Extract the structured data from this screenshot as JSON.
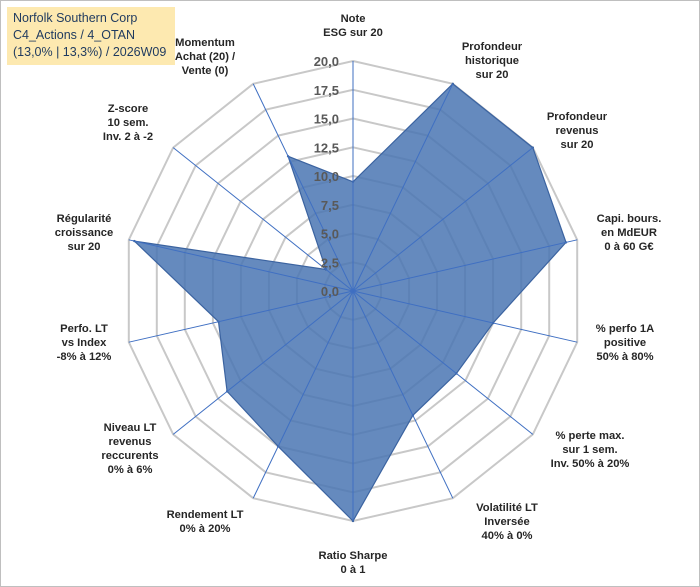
{
  "header": {
    "line1": "Norfolk Southern Corp",
    "line2": "C4_Actions / 4_OTAN",
    "line3": "(13,0% | 13,3%) / 2026W09"
  },
  "colors": {
    "fill": "#4a76b3",
    "stroke": "#3b63a0",
    "spoke": "#3f6fc2",
    "grid": "#c8c8c8",
    "title_bg": "#fde9b0"
  },
  "chart_data": {
    "type": "radar",
    "title": "Norfolk Southern Corp",
    "rlim": [
      0,
      20
    ],
    "tick_labels": [
      "0,0",
      "2,5",
      "5,0",
      "7,5",
      "10,0",
      "12,5",
      "15,0",
      "17,5",
      "20,0"
    ],
    "grid": true,
    "categories": [
      {
        "label": [
          "Note",
          "ESG sur 20"
        ],
        "value": 9.5
      },
      {
        "label": [
          "Profondeur",
          "historique",
          "sur 20"
        ],
        "value": 20.0
      },
      {
        "label": [
          "Profondeur",
          "revenus",
          "sur 20"
        ],
        "value": 20.0
      },
      {
        "label": [
          "Capi. bours.",
          "en MdEUR",
          "0 à 60 G€"
        ],
        "value": 19.0
      },
      {
        "label": [
          "% perfo 1A",
          "positive",
          "50% à 80%"
        ],
        "value": 12.5
      },
      {
        "label": [
          "% perte max.",
          "sur 1 sem.",
          "Inv. 50% à 20%"
        ],
        "value": 11.5
      },
      {
        "label": [
          "Volatilité LT",
          "Inversée",
          "40% à 0%"
        ],
        "value": 12.0
      },
      {
        "label": [
          "Ratio Sharpe",
          "0 à 1"
        ],
        "value": 20.0
      },
      {
        "label": [
          "Rendement LT",
          "0% à 20%"
        ],
        "value": 15.0
      },
      {
        "label": [
          "Niveau LT",
          "revenus",
          "reccurents",
          "0% à 6%"
        ],
        "value": 14.0
      },
      {
        "label": [
          "Perfo. LT",
          "vs Index",
          "-8% à 12%"
        ],
        "value": 12.0
      },
      {
        "label": [
          "Régularité",
          "croissance",
          "sur 20"
        ],
        "value": 19.5
      },
      {
        "label": [
          "Z-score",
          "10 sem.",
          "Inv. 2 à -2"
        ],
        "value": 3.0
      },
      {
        "label": [
          "Momentum",
          "Achat (20) /",
          "Vente (0)"
        ],
        "value": 13.0
      }
    ]
  }
}
